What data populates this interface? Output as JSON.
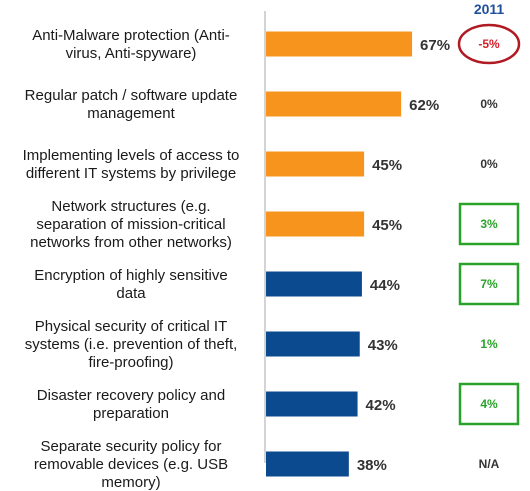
{
  "chart_data": {
    "type": "bar",
    "orientation": "horizontal",
    "change_column_header": "2011",
    "categories": [
      [
        "Anti-Malware protection (Anti-",
        "virus, Anti-spyware)"
      ],
      [
        "Regular patch / software update",
        "management"
      ],
      [
        "Implementing levels of access to",
        "different IT systems by privilege"
      ],
      [
        "Network structures (e.g.",
        "separation of mission-critical",
        "networks from other networks)"
      ],
      [
        "Encryption of highly sensitive",
        "data"
      ],
      [
        "Physical security of critical IT",
        "systems (i.e. prevention of theft,",
        "fire-proofing)"
      ],
      [
        "Disaster recovery policy and",
        "preparation"
      ],
      [
        "Separate security policy for",
        "removable devices (e.g. USB",
        "memory)"
      ]
    ],
    "values": [
      67,
      62,
      45,
      45,
      44,
      43,
      42,
      38
    ],
    "value_labels": [
      "67%",
      "62%",
      "45%",
      "45%",
      "44%",
      "43%",
      "42%",
      "38%"
    ],
    "bar_colors": [
      "#f7941d",
      "#f7941d",
      "#f7941d",
      "#f7941d",
      "#0b4a8f",
      "#0b4a8f",
      "#0b4a8f",
      "#0b4a8f"
    ],
    "changes": [
      "-5%",
      "0%",
      "0%",
      "3%",
      "7%",
      "1%",
      "4%",
      "N/A"
    ],
    "change_colors": [
      "#d4202a",
      "#333333",
      "#333333",
      "#2aa22a",
      "#2aa22a",
      "#2aa22a",
      "#2aa22a",
      "#333333"
    ],
    "change_markers": [
      "red-ellipse",
      "none",
      "none",
      "green-box",
      "green-box",
      "none",
      "green-box",
      "none"
    ],
    "colors": {
      "orange": "#f7941d",
      "blue": "#0b4a8f",
      "negative": "#d4202a",
      "positive": "#2aa22a",
      "axis": "#aaaaaa",
      "header": "#1f4e9a"
    }
  }
}
